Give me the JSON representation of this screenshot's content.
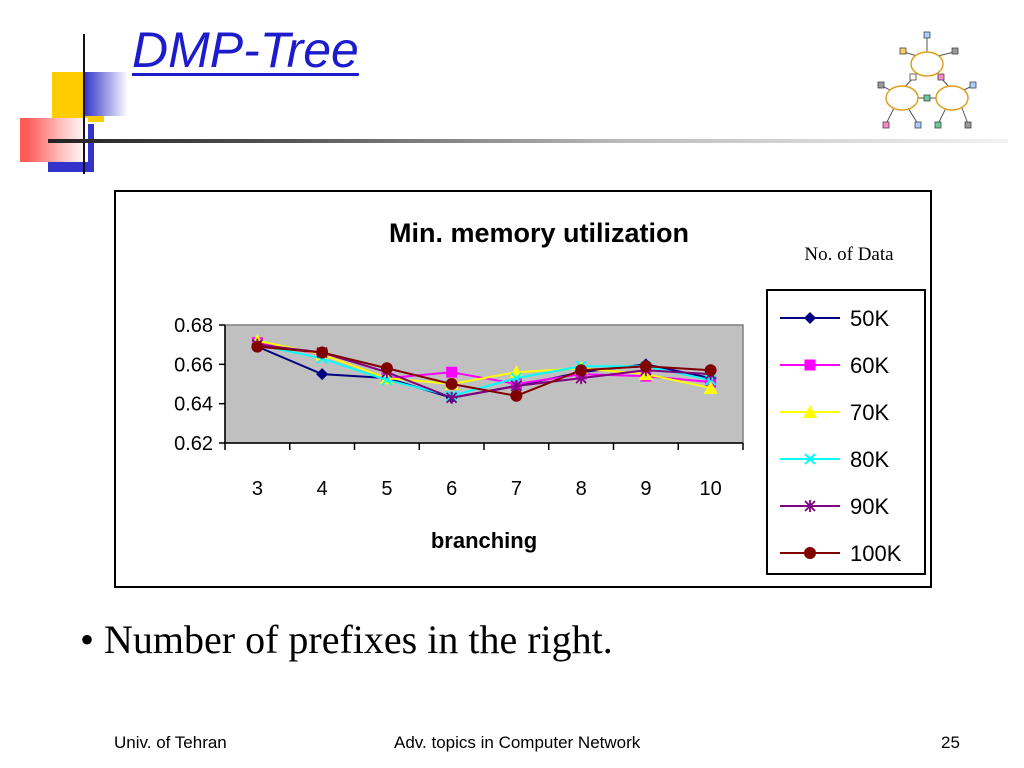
{
  "slide": {
    "title": "DMP-Tree",
    "bullet": "• Number of prefixes in the right.",
    "footer": {
      "left": "Univ. of Tehran",
      "center": "Adv. topics in Computer Network",
      "page": "25"
    }
  },
  "icons": {
    "title_decoration": "colored-squares-decoration",
    "logo": "network-clouds-icon"
  },
  "colors": {
    "title": "#1c1ccc",
    "plot_background": "#c0c0c0"
  },
  "chart_data": {
    "type": "line",
    "title": "Min. memory utilization",
    "xlabel": "branching",
    "ylabel": "",
    "categories": [
      "3",
      "4",
      "5",
      "6",
      "7",
      "8",
      "9",
      "10"
    ],
    "ylim": [
      0.62,
      0.68
    ],
    "yticks": [
      "0.68",
      "0.66",
      "0.64",
      "0.62"
    ],
    "grid": false,
    "legend": {
      "title": "No. of Data",
      "position": "right"
    },
    "series": [
      {
        "name": "50K",
        "color": "#000080",
        "marker": "diamond",
        "values": [
          0.669,
          0.655,
          0.653,
          0.643,
          0.649,
          0.656,
          0.66,
          0.653
        ]
      },
      {
        "name": "60K",
        "color": "#ff00ff",
        "marker": "square",
        "values": [
          0.671,
          0.665,
          0.653,
          0.656,
          0.65,
          0.655,
          0.654,
          0.651
        ]
      },
      {
        "name": "70K",
        "color": "#ffff00",
        "marker": "triangle",
        "values": [
          0.672,
          0.665,
          0.653,
          0.65,
          0.656,
          0.658,
          0.655,
          0.648
        ]
      },
      {
        "name": "80K",
        "color": "#00ffff",
        "marker": "x",
        "values": [
          0.67,
          0.663,
          0.652,
          0.644,
          0.653,
          0.659,
          0.659,
          0.652
        ]
      },
      {
        "name": "90K",
        "color": "#800080",
        "marker": "star",
        "values": [
          0.67,
          0.666,
          0.656,
          0.643,
          0.649,
          0.653,
          0.657,
          0.655
        ]
      },
      {
        "name": "100K",
        "color": "#800000",
        "marker": "circle",
        "values": [
          0.669,
          0.666,
          0.658,
          0.65,
          0.644,
          0.657,
          0.659,
          0.657
        ]
      }
    ]
  }
}
